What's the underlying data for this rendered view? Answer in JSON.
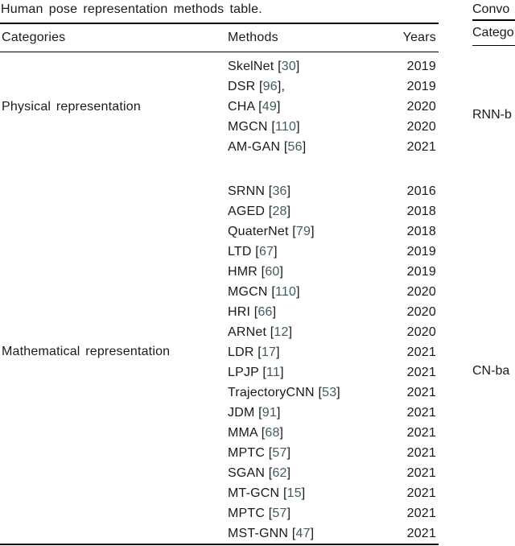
{
  "left_table": {
    "caption": "Human pose representation methods table.",
    "columns": [
      "Categories",
      "Methods",
      "Years"
    ],
    "citation_color": "#3d5c62",
    "groups": [
      {
        "category": "Physical representation",
        "rows": [
          {
            "method": "SkelNet",
            "ref": "30",
            "suffix": "",
            "year": "2019"
          },
          {
            "method": "DSR",
            "ref": "96",
            "suffix": ",",
            "year": "2019"
          },
          {
            "method": "CHA",
            "ref": "49",
            "suffix": "",
            "year": "2020"
          },
          {
            "method": "MGCN",
            "ref": "110",
            "suffix": "",
            "year": "2020"
          },
          {
            "method": "AM-GAN",
            "ref": "56",
            "suffix": "",
            "year": "2021"
          }
        ]
      },
      {
        "category": "Mathematical representation",
        "rows": [
          {
            "method": "SRNN",
            "ref": "36",
            "suffix": "",
            "year": "2016"
          },
          {
            "method": "AGED",
            "ref": "28",
            "suffix": "",
            "year": "2018"
          },
          {
            "method": "QuaterNet",
            "ref": "79",
            "suffix": "",
            "year": "2018"
          },
          {
            "method": "LTD",
            "ref": "67",
            "suffix": "",
            "year": "2019"
          },
          {
            "method": "HMR",
            "ref": "60",
            "suffix": "",
            "year": "2019"
          },
          {
            "method": "MGCN",
            "ref": "110",
            "suffix": "",
            "year": "2020"
          },
          {
            "method": "HRI",
            "ref": "66",
            "suffix": "",
            "year": "2020"
          },
          {
            "method": "ARNet",
            "ref": "12",
            "suffix": "",
            "year": "2020"
          },
          {
            "method": "LDR",
            "ref": "17",
            "suffix": "",
            "year": "2021"
          },
          {
            "method": "LPJP",
            "ref": "11",
            "suffix": "",
            "year": "2021"
          },
          {
            "method": "TrajectoryCNN",
            "ref": "53",
            "suffix": "",
            "year": "2021"
          },
          {
            "method": "JDM",
            "ref": "91",
            "suffix": "",
            "year": "2021"
          },
          {
            "method": "MMA",
            "ref": "68",
            "suffix": "",
            "year": "2021"
          },
          {
            "method": "MPTC",
            "ref": "57",
            "suffix": "",
            "year": "2021"
          },
          {
            "method": "SGAN",
            "ref": "62",
            "suffix": "",
            "year": "2021"
          },
          {
            "method": "MT-GCN",
            "ref": "15",
            "suffix": "",
            "year": "2021"
          },
          {
            "method": "MPTC",
            "ref": "57",
            "suffix": "",
            "year": "2021"
          },
          {
            "method": "MST-GNN",
            "ref": "47",
            "suffix": "",
            "year": "2021"
          }
        ]
      }
    ]
  },
  "right_table": {
    "caption_fragment": "Convo",
    "header_fragment": "Catego",
    "category_fragments": [
      "RNN-b",
      "CN-ba"
    ]
  }
}
